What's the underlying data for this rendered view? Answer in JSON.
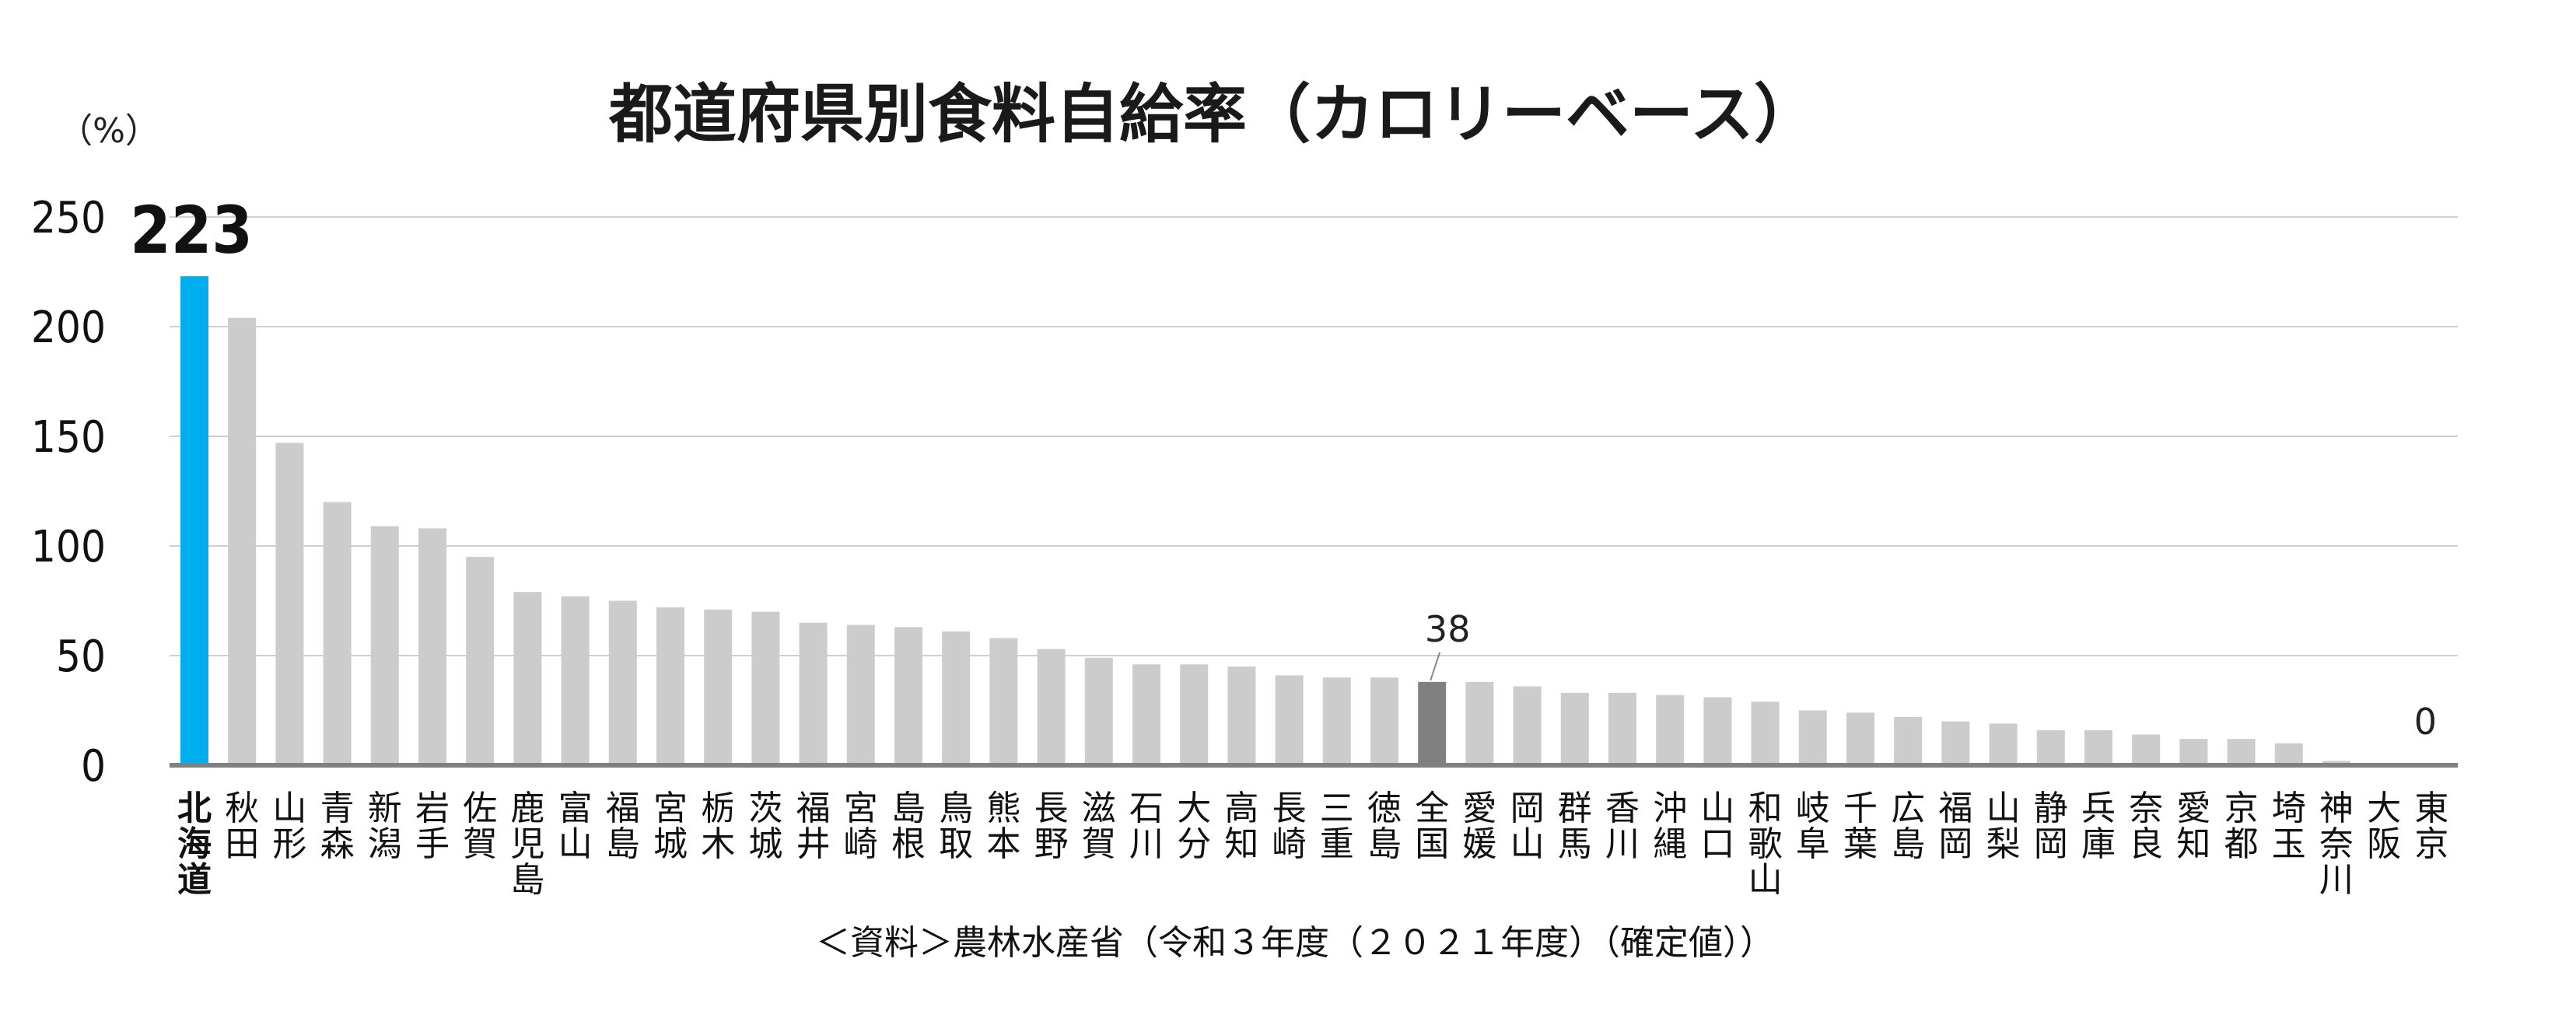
{
  "chart_data": {
    "type": "bar",
    "title": "都道府県別食料自給率（カロリーベース）",
    "ylabel": "（%）",
    "ylim": [
      0,
      250
    ],
    "yticks": [
      0,
      50,
      100,
      150,
      200,
      250
    ],
    "grid": true,
    "categories": [
      "北海道",
      "秋田",
      "山形",
      "青森",
      "新潟",
      "岩手",
      "佐賀",
      "鹿児島",
      "富山",
      "福島",
      "宮城",
      "栃木",
      "茨城",
      "福井",
      "宮崎",
      "島根",
      "鳥取",
      "熊本",
      "長野",
      "滋賀",
      "石川",
      "大分",
      "高知",
      "長崎",
      "三重",
      "徳島",
      "全国",
      "愛媛",
      "岡山",
      "群馬",
      "香川",
      "沖縄",
      "山口",
      "和歌山",
      "岐阜",
      "千葉",
      "広島",
      "福岡",
      "山梨",
      "静岡",
      "兵庫",
      "奈良",
      "愛知",
      "京都",
      "埼玉",
      "神奈川",
      "大阪",
      "東京"
    ],
    "values": [
      223,
      204,
      147,
      120,
      109,
      108,
      95,
      79,
      77,
      75,
      72,
      71,
      70,
      65,
      64,
      63,
      61,
      58,
      53,
      49,
      46,
      46,
      45,
      41,
      40,
      40,
      38,
      38,
      36,
      33,
      33,
      32,
      31,
      29,
      25,
      24,
      22,
      20,
      19,
      16,
      16,
      14,
      12,
      12,
      10,
      2,
      1,
      0
    ],
    "highlight": {
      "北海道": "#00aeef",
      "全国": "#808080"
    },
    "default_color": "#cccccc",
    "data_labels": [
      {
        "category": "北海道",
        "text": "223"
      },
      {
        "category": "全国",
        "text": "38"
      },
      {
        "category": "東京",
        "text": "0"
      }
    ],
    "source": "＜資料＞農林水産省（令和３年度（２０２１年度）（確定値））"
  }
}
